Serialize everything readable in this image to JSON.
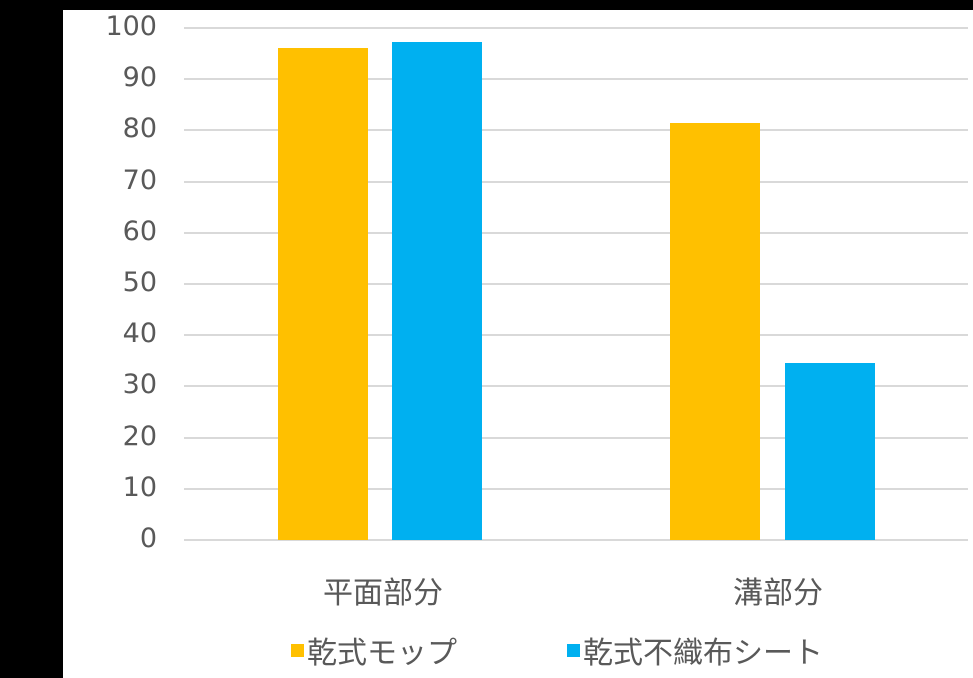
{
  "chart_data": {
    "type": "bar",
    "title": "",
    "xlabel": "",
    "ylabel": "",
    "categories": [
      "平面部分",
      "溝部分"
    ],
    "series": [
      {
        "name": "乾式モップ",
        "color": "#FFC000",
        "values": [
          96.1,
          81.4
        ]
      },
      {
        "name": "乾式不織布シート",
        "color": "#00B0F0",
        "values": [
          97.3,
          34.6
        ]
      }
    ],
    "ylim": [
      0,
      100
    ],
    "yticks": [
      "100",
      "90",
      "80",
      "70",
      "60",
      "50",
      "40",
      "30",
      "20",
      "10",
      "0"
    ],
    "grid": true,
    "legend_position": "bottom"
  },
  "legend": {
    "items": [
      {
        "label": "乾式モップ",
        "color": "#FFC000"
      },
      {
        "label": "乾式不織布シート",
        "color": "#00B0F0"
      }
    ]
  }
}
